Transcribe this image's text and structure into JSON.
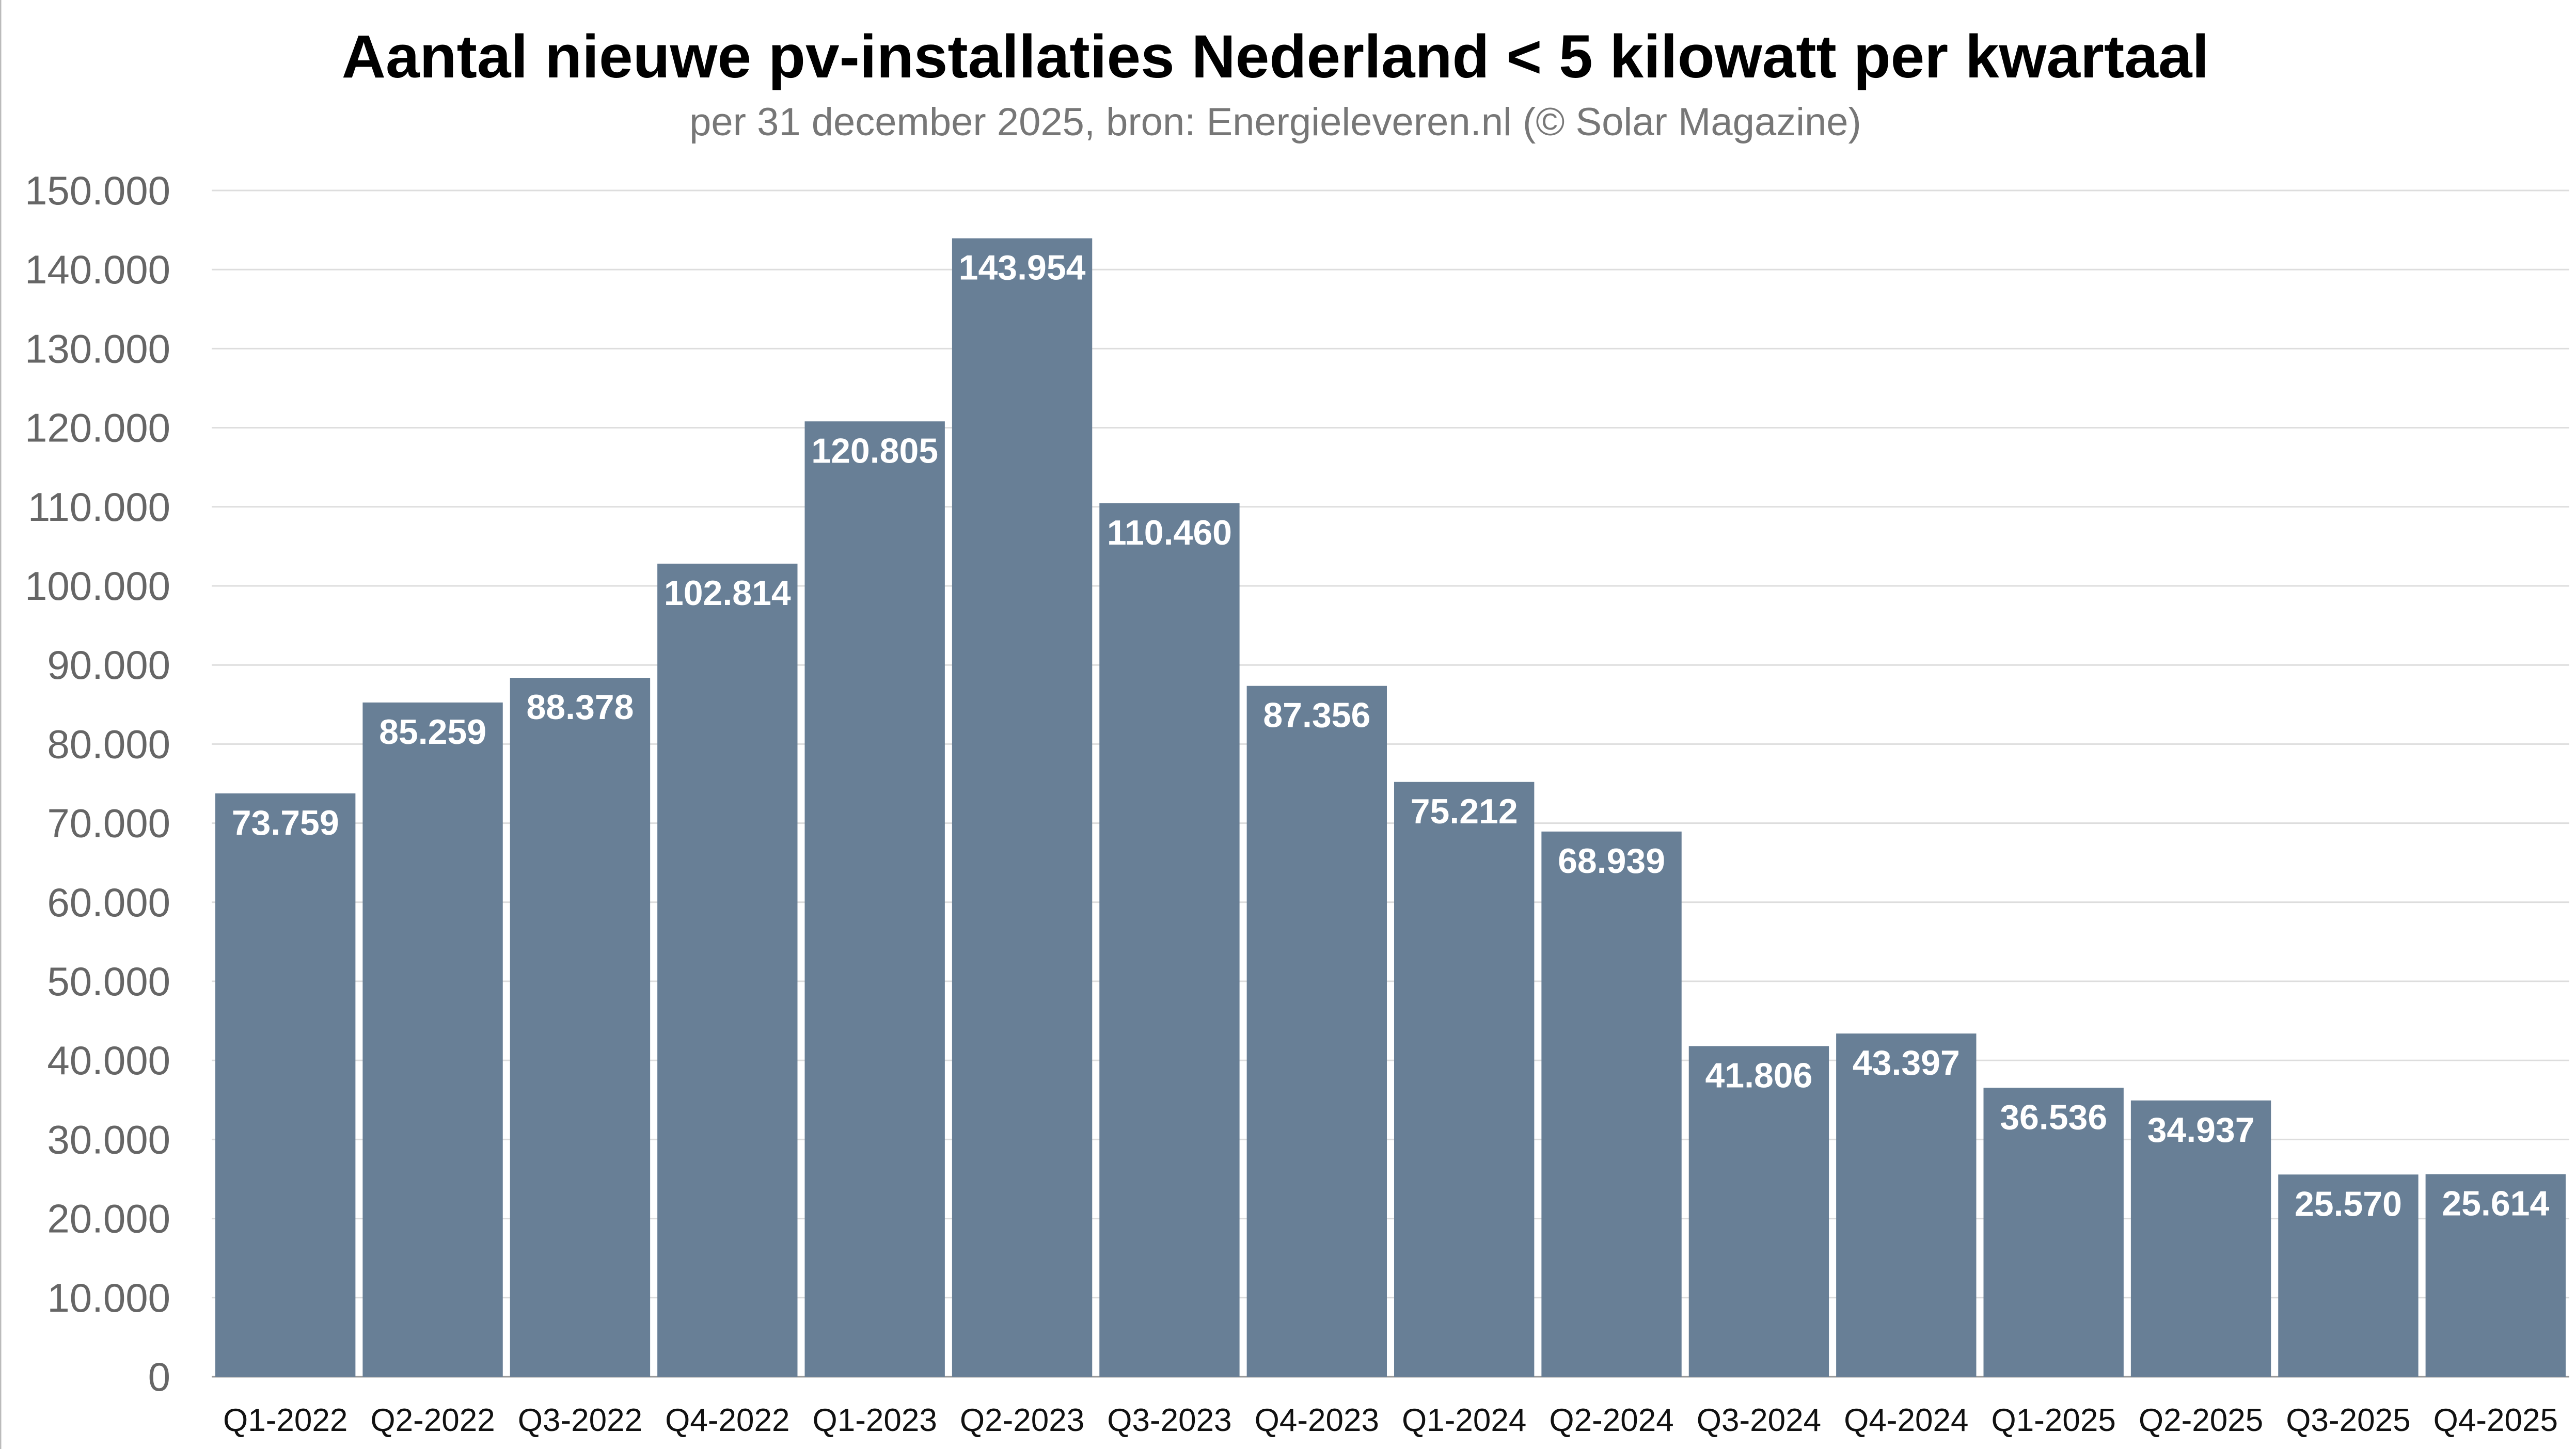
{
  "chart_data": {
    "type": "bar",
    "title": "Aantal nieuwe pv-installaties Nederland < 5 kilowatt per kwartaal",
    "subtitle": "per 31 december 2025, bron: Energieleveren.nl (© Solar Magazine)",
    "xlabel": "",
    "ylabel": "",
    "ylim": [
      0,
      150000
    ],
    "ytick_step": 10000,
    "grid": true,
    "bar_color": "#687f96",
    "categories": [
      "Q1-2022",
      "Q2-2022",
      "Q3-2022",
      "Q4-2022",
      "Q1-2023",
      "Q2-2023",
      "Q3-2023",
      "Q4-2023",
      "Q1-2024",
      "Q2-2024",
      "Q3-2024",
      "Q4-2024",
      "Q1-2025",
      "Q2-2025",
      "Q3-2025",
      "Q4-2025"
    ],
    "values": [
      73759,
      85259,
      88378,
      102814,
      120805,
      143954,
      110460,
      87356,
      75212,
      68939,
      41806,
      43397,
      36536,
      34937,
      25570,
      25614
    ]
  }
}
